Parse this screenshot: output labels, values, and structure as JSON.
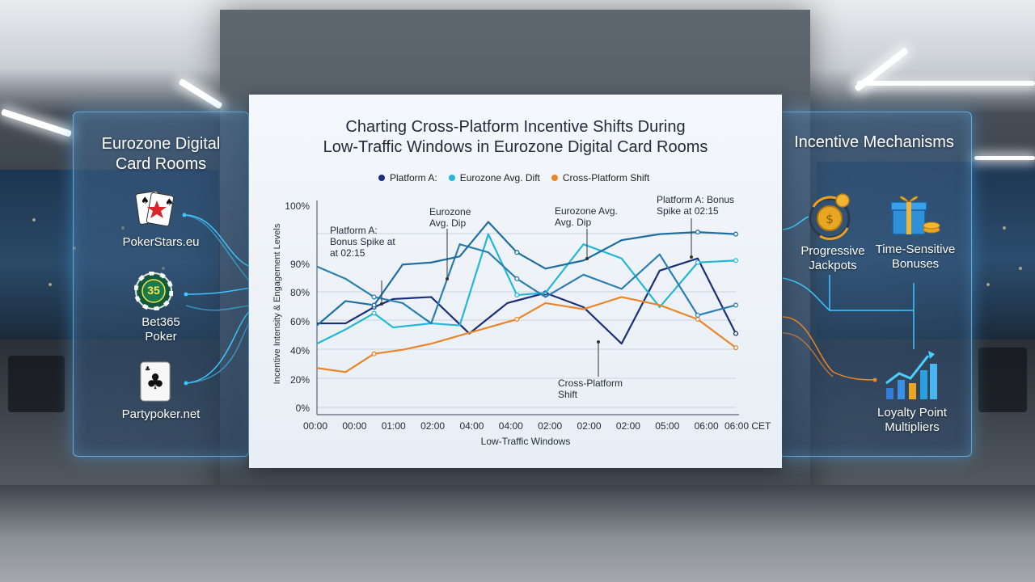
{
  "left_panel": {
    "title_line1": "Eurozone Digital",
    "title_line2": "Card Rooms",
    "platforms": [
      {
        "label": "PokerStars.eu",
        "icon": "cards-spade-icon"
      },
      {
        "label_line1": "Bet365",
        "label_line2": "Poker",
        "icon": "poker-chip-icon",
        "chip_text": "35"
      },
      {
        "label": "Partypoker.net",
        "icon": "club-card-icon"
      }
    ]
  },
  "right_panel": {
    "title": "Incentive Mechanisms",
    "mechanisms": [
      {
        "label_line1": "Progressive",
        "label_line2": "Jackpots",
        "icon": "coin-cycle-icon"
      },
      {
        "label_line1": "Time-Sensitive",
        "label_line2": "Bonuses",
        "icon": "gift-box-icon"
      },
      {
        "label_line1": "Loyalty Point",
        "label_line2": "Multipliers",
        "icon": "rising-bars-icon"
      }
    ]
  },
  "colors": {
    "platform_a": "#1a2f7a",
    "eurozone_avg": "#22b8d6",
    "cross_platform": "#e8862a",
    "extra_series": "#2b7fb0",
    "extra_series_2": "#1e6f9f"
  },
  "chart_data": {
    "type": "line",
    "title_line1": "Charting Cross-Platform Incentive Shifts During",
    "title_line2": "Low-Traffic Windows in Eurozone Digital Card Rooms",
    "xlabel": "Low-Traffic Windows",
    "ylabel": "Incentive Intensity & Engagement Levels",
    "x_ticks": [
      "00:00",
      "00:00",
      "01:00",
      "02:00",
      "04:00",
      "04:00",
      "02:00",
      "02:00",
      "02:00",
      "05:00",
      "06:00",
      "06:00 CET"
    ],
    "y_ticks": [
      "0%",
      "20%",
      "40%",
      "60%",
      "80%",
      "90%",
      "100%"
    ],
    "legend": [
      {
        "name": "Platform A:",
        "color": "#1a2f7a"
      },
      {
        "name": "Eurozone Avg. Dift",
        "color": "#22b8d6"
      },
      {
        "name": "Cross-Platform Shift",
        "color": "#e8862a"
      }
    ],
    "legend_position": "top-right",
    "grid": true,
    "annotations": [
      {
        "line1": "Platform A:",
        "line2": "Bonus Spike at",
        "line3": "at 02:15"
      },
      {
        "line1": "Eurozone",
        "line2": "Avg. Dip"
      },
      {
        "line1": "Eurozone Avg.",
        "line2": "Avg. Dip"
      },
      {
        "line1": "Platform A: Bonus",
        "line2": "Spike at 02:15"
      },
      {
        "line1": "Cross-Platform",
        "line2": "Shift"
      }
    ],
    "series": [
      {
        "color": "#1a2f7a",
        "x": [
          0,
          1.5,
          3,
          4,
          6,
          8,
          10,
          12,
          14,
          16,
          18,
          20,
          22
        ],
        "y": [
          45,
          45,
          53,
          57,
          58,
          40,
          55,
          60,
          53,
          35,
          71,
          77,
          40
        ]
      },
      {
        "color": "#22b8d6",
        "x": [
          0,
          1.5,
          3,
          4,
          6,
          7.5,
          9,
          10.5,
          12,
          14,
          16,
          18,
          20,
          22
        ],
        "y": [
          35,
          42,
          50,
          43,
          45,
          44,
          89,
          59,
          60,
          84,
          77,
          53,
          75,
          76
        ]
      },
      {
        "color": "#e8862a",
        "x": [
          0,
          1.5,
          3,
          4.5,
          6,
          7.5,
          9,
          10.5,
          12,
          14,
          16,
          18,
          20,
          22
        ],
        "y": [
          23,
          21,
          30,
          32,
          35,
          39,
          43,
          47,
          55,
          52,
          58,
          54,
          47,
          33
        ]
      },
      {
        "color": "#2b7fb0",
        "x": [
          0,
          1.5,
          3,
          4.5,
          6,
          7.5,
          9,
          10.5,
          12,
          14,
          16,
          18,
          20,
          22
        ],
        "y": [
          73,
          67,
          58,
          55,
          45,
          84,
          80,
          67,
          58,
          69,
          62,
          79,
          49,
          54
        ]
      },
      {
        "color": "#1e6f9f",
        "x": [
          0,
          1.5,
          3,
          4.5,
          6,
          7.5,
          9,
          10.5,
          12,
          14,
          16,
          18,
          20,
          22
        ],
        "y": [
          44,
          56,
          54,
          74,
          75,
          78,
          95,
          80,
          72,
          76,
          86,
          89,
          90,
          89
        ]
      }
    ]
  }
}
